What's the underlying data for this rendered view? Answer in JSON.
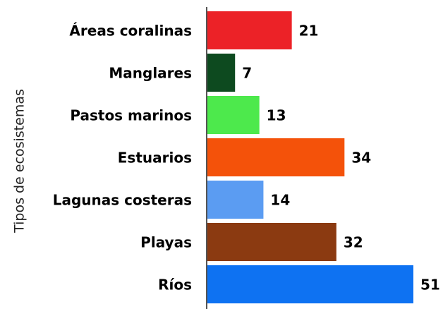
{
  "chart_data": {
    "type": "bar",
    "orientation": "horizontal",
    "y_label": "Tipos de ecosistemas",
    "categories": [
      "Áreas coralinas",
      "Manglares",
      "Pastos marinos",
      "Estuarios",
      "Lagunas costeras",
      "Playas",
      "Ríos"
    ],
    "values": [
      21,
      7,
      13,
      34,
      14,
      32,
      51
    ],
    "colors": [
      "#ec2227",
      "#0d4a1f",
      "#4de94c",
      "#f4520a",
      "#5b9cf2",
      "#8b3a11",
      "#0e72f2"
    ],
    "xlim": [
      0,
      51
    ]
  }
}
